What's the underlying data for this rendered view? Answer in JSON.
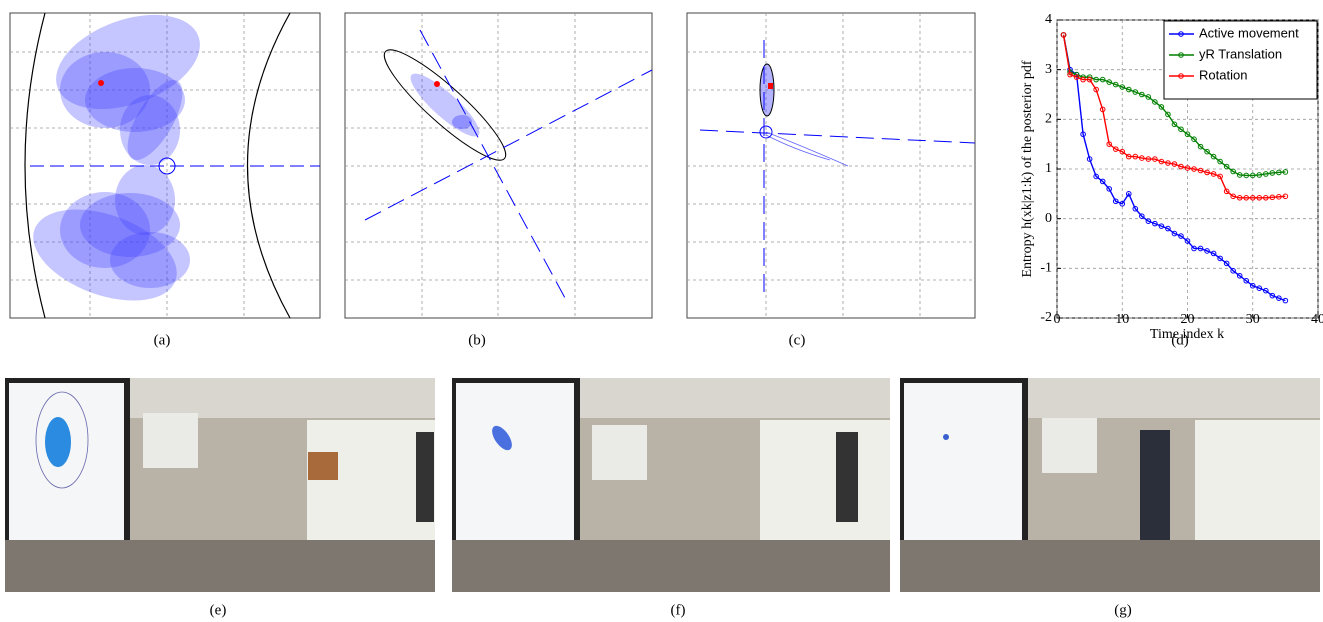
{
  "captions": [
    "(a)",
    "(b)",
    "(c)",
    "(d)",
    "(e)",
    "(f)",
    "(g)"
  ],
  "chart_data": {
    "type": "line",
    "xlabel": "Time index k",
    "ylabel": "Entropy h(xk|z1:k) of the posterior pdf",
    "x": [
      1,
      2,
      3,
      4,
      5,
      6,
      7,
      8,
      9,
      10,
      11,
      12,
      13,
      14,
      15,
      16,
      17,
      18,
      19,
      20,
      21,
      22,
      23,
      24,
      25,
      26,
      27,
      28,
      29,
      30,
      31,
      32,
      33,
      34,
      35
    ],
    "xlim": [
      0,
      40
    ],
    "xticks": [
      0,
      10,
      20,
      30,
      40
    ],
    "ylim": [
      -2,
      4
    ],
    "yticks": [
      -2,
      -1,
      0,
      1,
      2,
      3,
      4
    ],
    "grid": true,
    "legend": "upper right",
    "series": [
      {
        "name": "Active movement",
        "color": "#0000ff",
        "values": [
          3.7,
          3.0,
          2.9,
          1.7,
          1.2,
          0.85,
          0.75,
          0.6,
          0.35,
          0.3,
          0.5,
          0.2,
          0.05,
          -0.05,
          -0.1,
          -0.15,
          -0.2,
          -0.3,
          -0.35,
          -0.45,
          -0.6,
          -0.6,
          -0.65,
          -0.7,
          -0.8,
          -0.9,
          -1.05,
          -1.15,
          -1.25,
          -1.35,
          -1.4,
          -1.45,
          -1.55,
          -1.6,
          -1.65
        ]
      },
      {
        "name": "yR Translation",
        "color": "#008000",
        "values": [
          3.7,
          2.95,
          2.9,
          2.85,
          2.85,
          2.8,
          2.8,
          2.75,
          2.7,
          2.65,
          2.6,
          2.55,
          2.5,
          2.45,
          2.35,
          2.25,
          2.1,
          1.9,
          1.8,
          1.7,
          1.6,
          1.45,
          1.35,
          1.25,
          1.15,
          1.05,
          0.95,
          0.88,
          0.87,
          0.87,
          0.88,
          0.9,
          0.92,
          0.93,
          0.94
        ]
      },
      {
        "name": "Rotation",
        "color": "#ff0000",
        "values": [
          3.7,
          2.9,
          2.85,
          2.8,
          2.8,
          2.6,
          2.2,
          1.5,
          1.4,
          1.35,
          1.25,
          1.25,
          1.22,
          1.2,
          1.2,
          1.15,
          1.12,
          1.1,
          1.05,
          1.02,
          1.0,
          0.97,
          0.93,
          0.9,
          0.85,
          0.55,
          0.45,
          0.42,
          0.42,
          0.42,
          0.42,
          0.42,
          0.43,
          0.44,
          0.45
        ]
      }
    ]
  }
}
